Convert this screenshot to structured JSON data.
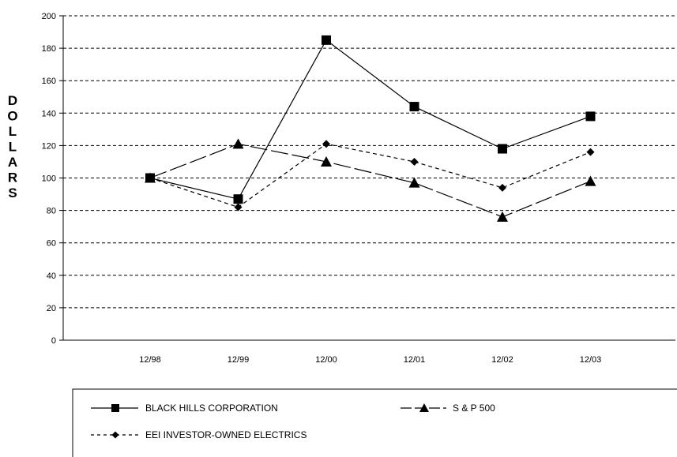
{
  "chart_data": {
    "type": "line",
    "title": "",
    "xlabel": "",
    "ylabel": "DOLLARS",
    "categories": [
      "12/98",
      "12/99",
      "12/00",
      "12/01",
      "12/02",
      "12/03"
    ],
    "ylim": [
      0,
      200
    ],
    "yticks": [
      0,
      20,
      40,
      60,
      80,
      100,
      120,
      140,
      160,
      180,
      200
    ],
    "grid": true,
    "grid_style": "dashed-horizontal",
    "legend_position": "bottom",
    "series": [
      {
        "name": "BLACK HILLS CORPORATION",
        "values": [
          100,
          87,
          185,
          144,
          118,
          138
        ],
        "marker": "square",
        "line": "solid",
        "color": "#000000"
      },
      {
        "name": "S & P 500",
        "values": [
          100,
          121,
          110,
          97,
          76,
          98
        ],
        "marker": "triangle",
        "line": "long-dash",
        "color": "#000000"
      },
      {
        "name": "EEI INVESTOR-OWNED ELECTRICS",
        "values": [
          100,
          82,
          121,
          110,
          94,
          116
        ],
        "marker": "diamond",
        "line": "short-dash",
        "color": "#000000"
      }
    ]
  }
}
